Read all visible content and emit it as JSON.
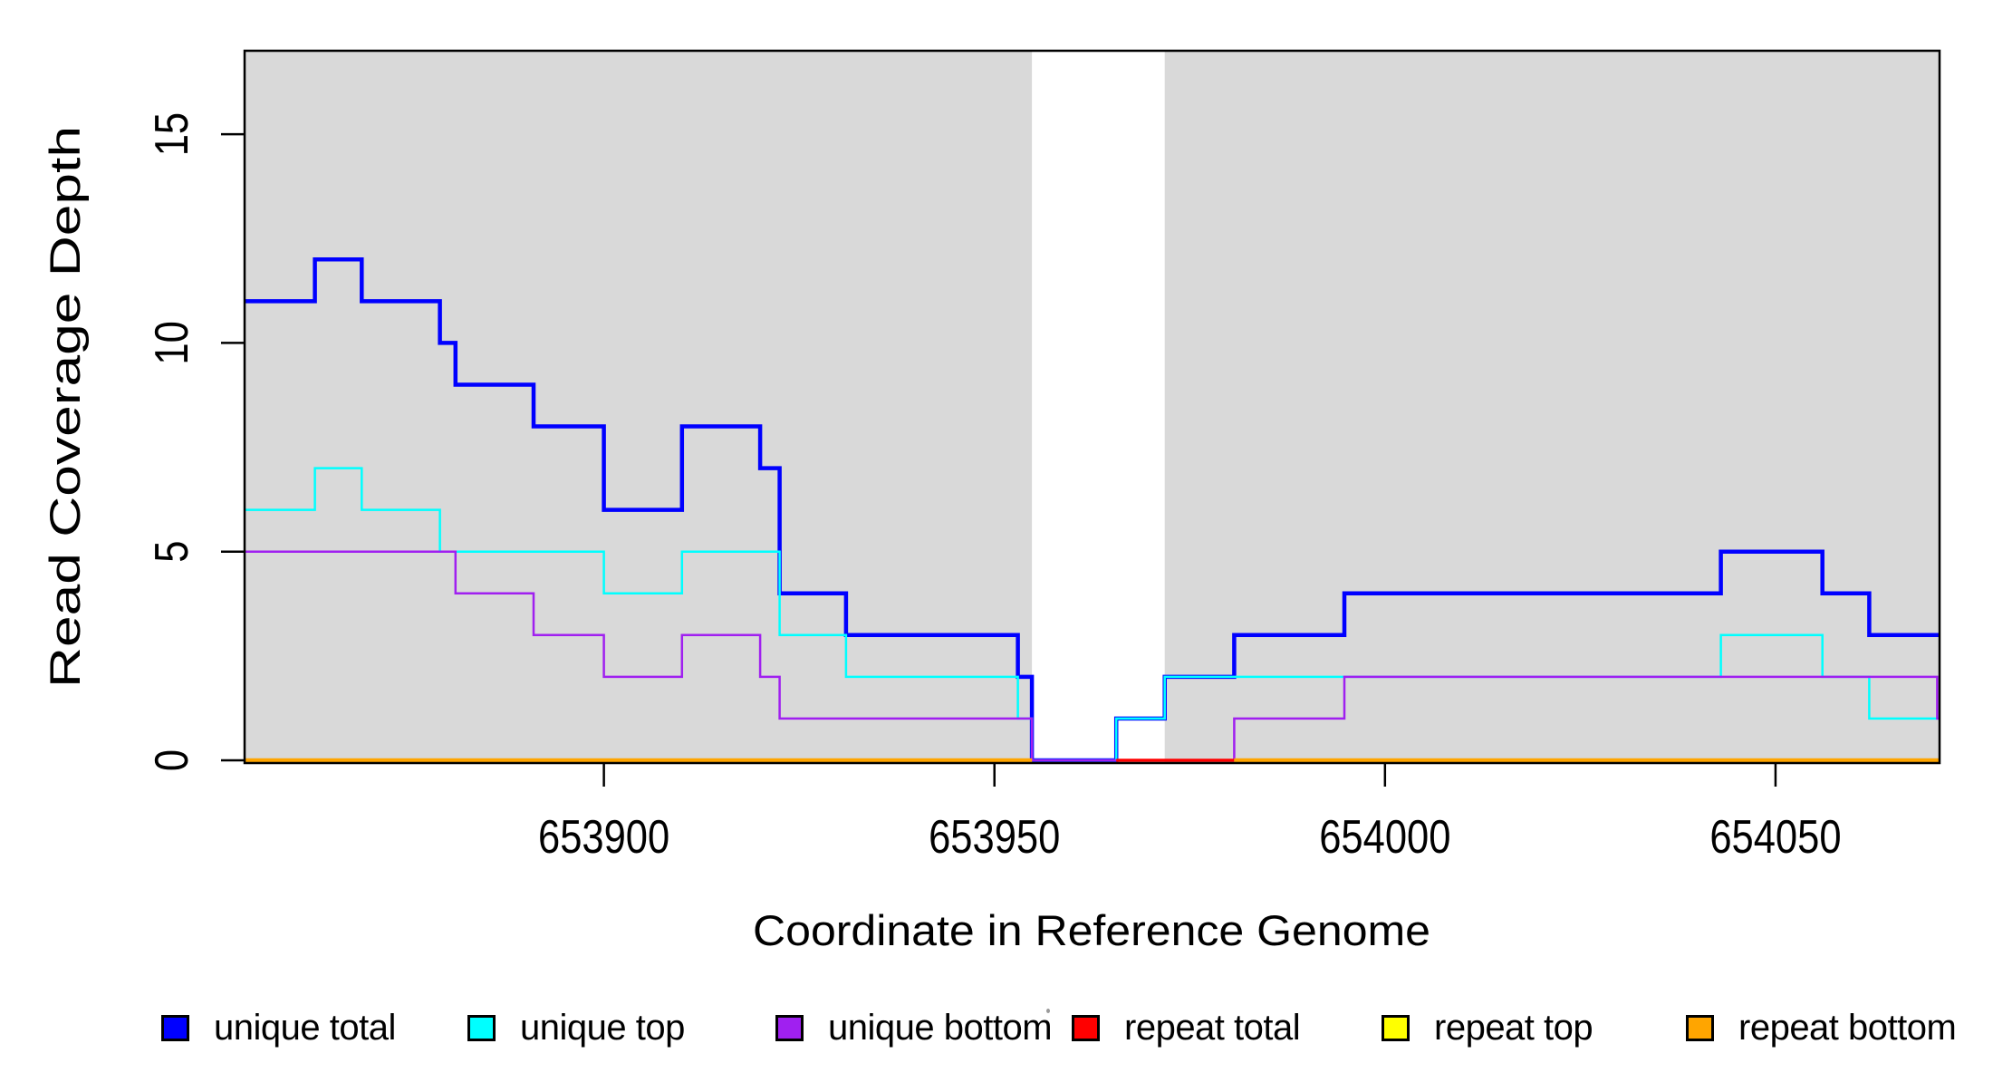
{
  "chart_data": {
    "type": "step-line",
    "title": "",
    "xlabel": "Coordinate in Reference Genome",
    "ylabel": "Read Coverage Depth",
    "xlim": [
      653854,
      654071
    ],
    "ylim": [
      0,
      17
    ],
    "x_ticks": [
      653900,
      653950,
      654000,
      654050
    ],
    "y_ticks": [
      0,
      5,
      10,
      15
    ],
    "grid": false,
    "legend_position": "bottom-horizontal",
    "panel_bg": "#D9D9D9",
    "page_bg": "#FFFFFF",
    "border_color": "#000000",
    "gap_region": {
      "x_start": 653954.8,
      "x_end": 653971.8,
      "color": "#FFFFFF"
    },
    "series": [
      {
        "name": "unique total",
        "color": "#0000FF",
        "line_width": 4.5,
        "segments": [
          [
            [
              653854,
              11
            ],
            [
              653863,
              12
            ],
            [
              653869,
              11
            ],
            [
              653879,
              10
            ],
            [
              653881,
              9
            ],
            [
              653891,
              8
            ],
            [
              653900,
              6
            ],
            [
              653910,
              8
            ],
            [
              653920,
              7
            ],
            [
              653922.5,
              4
            ],
            [
              653931,
              3
            ],
            [
              653953,
              2
            ],
            [
              653954.8,
              0
            ],
            [
              653965.6,
              1
            ],
            [
              653971.8,
              2
            ],
            [
              653980.7,
              3
            ],
            [
              653994.8,
              4
            ],
            [
              654043,
              5
            ],
            [
              654056,
              4
            ],
            [
              654062,
              3
            ],
            [
              654071,
              3
            ]
          ]
        ]
      },
      {
        "name": "unique top",
        "color": "#00FFFF",
        "line_width": 2.5,
        "segments": [
          [
            [
              653854,
              6
            ],
            [
              653863,
              7
            ],
            [
              653869,
              6
            ],
            [
              653879,
              5
            ],
            [
              653900,
              4
            ],
            [
              653910,
              5
            ],
            [
              653922.5,
              3
            ],
            [
              653931,
              2
            ],
            [
              653953,
              1
            ],
            [
              653954.8,
              0
            ],
            [
              653965.6,
              1
            ],
            [
              653971.8,
              2
            ],
            [
              654043,
              3
            ],
            [
              654056,
              2
            ],
            [
              654062,
              1
            ],
            [
              654071,
              1
            ]
          ]
        ]
      },
      {
        "name": "unique bottom",
        "color": "#A020F0",
        "line_width": 2.5,
        "segments": [
          [
            [
              653854,
              5
            ],
            [
              653881,
              4
            ],
            [
              653891,
              3
            ],
            [
              653900,
              2
            ],
            [
              653910,
              3
            ],
            [
              653920,
              2
            ],
            [
              653922.5,
              1
            ],
            [
              653954.8,
              0
            ],
            [
              653980.7,
              1
            ],
            [
              653994.8,
              2
            ],
            [
              654070.7,
              1
            ],
            [
              654071,
              1
            ]
          ]
        ]
      },
      {
        "name": "repeat total",
        "color": "#FF0000",
        "line_width": 3.5,
        "segments": [
          [
            [
              653965.6,
              0
            ],
            [
              653980.7,
              0
            ]
          ]
        ]
      },
      {
        "name": "repeat top",
        "color": "#FFFF00",
        "line_width": 3,
        "segments": [
          [
            [
              653854,
              0
            ],
            [
              653954.8,
              0
            ]
          ],
          [
            [
              653980.7,
              0
            ],
            [
              654071,
              0
            ]
          ]
        ]
      },
      {
        "name": "repeat bottom",
        "color": "#FFA500",
        "line_width": 4.5,
        "segments": [
          [
            [
              653854,
              0
            ],
            [
              653954.8,
              0
            ]
          ],
          [
            [
              653980.7,
              0
            ],
            [
              654071,
              0
            ]
          ]
        ]
      }
    ]
  },
  "legend": {
    "items": [
      {
        "label": "unique total",
        "color": "#0000FF"
      },
      {
        "label": "unique top",
        "color": "#00FFFF"
      },
      {
        "label": "unique bottom",
        "color": "#A020F0"
      },
      {
        "label": "repeat total",
        "color": "#FF0000"
      },
      {
        "label": "repeat top",
        "color": "#FFFF00"
      },
      {
        "label": "repeat bottom",
        "color": "#FFA500"
      }
    ]
  }
}
